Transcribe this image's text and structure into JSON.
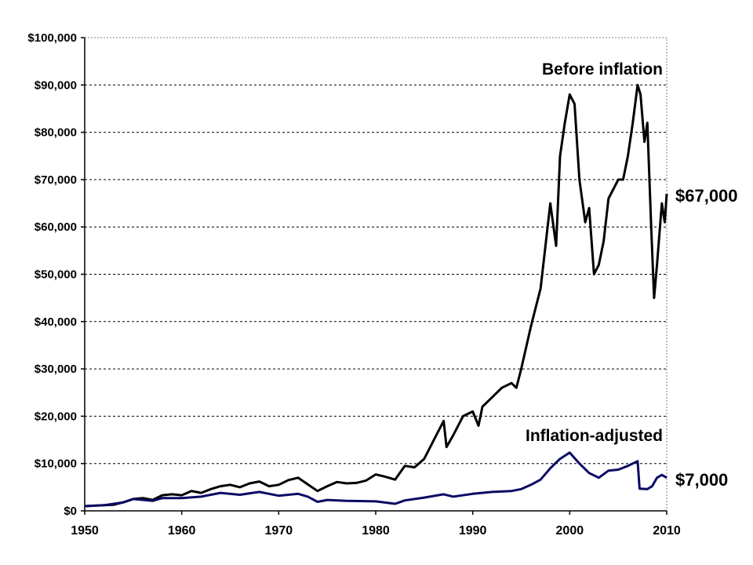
{
  "chart_data": {
    "type": "line",
    "xlim": [
      1950,
      2010
    ],
    "ylim": [
      0,
      100000
    ],
    "grid": true,
    "x_ticks": [
      "1950",
      "1960",
      "1970",
      "1980",
      "1990",
      "2000",
      "2010"
    ],
    "y_ticks": [
      "$0",
      "$10,000",
      "$20,000",
      "$30,000",
      "$40,000",
      "$50,000",
      "$60,000",
      "$70,000",
      "$80,000",
      "$90,000",
      "$100,000"
    ],
    "series": [
      {
        "name": "Before inflation",
        "color": "#000000",
        "end_label": "$67,000",
        "points": [
          [
            1950,
            1000
          ],
          [
            1951,
            1100
          ],
          [
            1952,
            1200
          ],
          [
            1953,
            1300
          ],
          [
            1954,
            1800
          ],
          [
            1955,
            2500
          ],
          [
            1956,
            2700
          ],
          [
            1957,
            2300
          ],
          [
            1958,
            3300
          ],
          [
            1959,
            3500
          ],
          [
            1960,
            3300
          ],
          [
            1961,
            4200
          ],
          [
            1962,
            3800
          ],
          [
            1963,
            4600
          ],
          [
            1964,
            5200
          ],
          [
            1965,
            5500
          ],
          [
            1966,
            5000
          ],
          [
            1967,
            5800
          ],
          [
            1968,
            6200
          ],
          [
            1969,
            5200
          ],
          [
            1970,
            5500
          ],
          [
            1971,
            6500
          ],
          [
            1972,
            7000
          ],
          [
            1973,
            5600
          ],
          [
            1974,
            4200
          ],
          [
            1975,
            5200
          ],
          [
            1976,
            6100
          ],
          [
            1977,
            5800
          ],
          [
            1978,
            5900
          ],
          [
            1979,
            6400
          ],
          [
            1980,
            7700
          ],
          [
            1981,
            7200
          ],
          [
            1982,
            6600
          ],
          [
            1983,
            9500
          ],
          [
            1984,
            9200
          ],
          [
            1985,
            11000
          ],
          [
            1986,
            15000
          ],
          [
            1987,
            19000
          ],
          [
            1987.3,
            13500
          ],
          [
            1988,
            16000
          ],
          [
            1989,
            20000
          ],
          [
            1990,
            21000
          ],
          [
            1990.6,
            18000
          ],
          [
            1991,
            22000
          ],
          [
            1992,
            24000
          ],
          [
            1993,
            26000
          ],
          [
            1994,
            27000
          ],
          [
            1994.5,
            26000
          ],
          [
            1995,
            30000
          ],
          [
            1996,
            39000
          ],
          [
            1997,
            47000
          ],
          [
            1997.5,
            56000
          ],
          [
            1998,
            65000
          ],
          [
            1998.6,
            56000
          ],
          [
            1999,
            75000
          ],
          [
            1999.5,
            82000
          ],
          [
            2000,
            88000
          ],
          [
            2000.5,
            86000
          ],
          [
            2001,
            70000
          ],
          [
            2001.6,
            61000
          ],
          [
            2002,
            64000
          ],
          [
            2002.5,
            50000
          ],
          [
            2003,
            52000
          ],
          [
            2003.5,
            57000
          ],
          [
            2004,
            66000
          ],
          [
            2004.5,
            68000
          ],
          [
            2005,
            70000
          ],
          [
            2005.5,
            70000
          ],
          [
            2006,
            75000
          ],
          [
            2006.5,
            82000
          ],
          [
            2007,
            90000
          ],
          [
            2007.3,
            88000
          ],
          [
            2007.7,
            78000
          ],
          [
            2008,
            82000
          ],
          [
            2008.4,
            60000
          ],
          [
            2008.7,
            45000
          ],
          [
            2009,
            52000
          ],
          [
            2009.5,
            65000
          ],
          [
            2009.8,
            61000
          ],
          [
            2010,
            67000
          ]
        ]
      },
      {
        "name": "Inflation-adjusted",
        "color": "#0a0a64",
        "end_label": "$7,000",
        "points": [
          [
            1950,
            1000
          ],
          [
            1952,
            1200
          ],
          [
            1954,
            1800
          ],
          [
            1955,
            2500
          ],
          [
            1957,
            2100
          ],
          [
            1958,
            2700
          ],
          [
            1960,
            2700
          ],
          [
            1962,
            3000
          ],
          [
            1964,
            3800
          ],
          [
            1966,
            3400
          ],
          [
            1968,
            4000
          ],
          [
            1970,
            3200
          ],
          [
            1972,
            3600
          ],
          [
            1973,
            3000
          ],
          [
            1974,
            1900
          ],
          [
            1975,
            2300
          ],
          [
            1977,
            2100
          ],
          [
            1980,
            2000
          ],
          [
            1982,
            1500
          ],
          [
            1983,
            2200
          ],
          [
            1985,
            2800
          ],
          [
            1987,
            3500
          ],
          [
            1988,
            3000
          ],
          [
            1990,
            3600
          ],
          [
            1992,
            4000
          ],
          [
            1994,
            4200
          ],
          [
            1995,
            4600
          ],
          [
            1996,
            5500
          ],
          [
            1997,
            6600
          ],
          [
            1998,
            9000
          ],
          [
            1999,
            11000
          ],
          [
            2000,
            12300
          ],
          [
            2001,
            10000
          ],
          [
            2002,
            8000
          ],
          [
            2003,
            7000
          ],
          [
            2004,
            8500
          ],
          [
            2005,
            8700
          ],
          [
            2006,
            9500
          ],
          [
            2007,
            10500
          ],
          [
            2007.2,
            4700
          ],
          [
            2008,
            4600
          ],
          [
            2008.5,
            5200
          ],
          [
            2009,
            7000
          ],
          [
            2009.5,
            7600
          ],
          [
            2010,
            7000
          ]
        ]
      }
    ]
  }
}
